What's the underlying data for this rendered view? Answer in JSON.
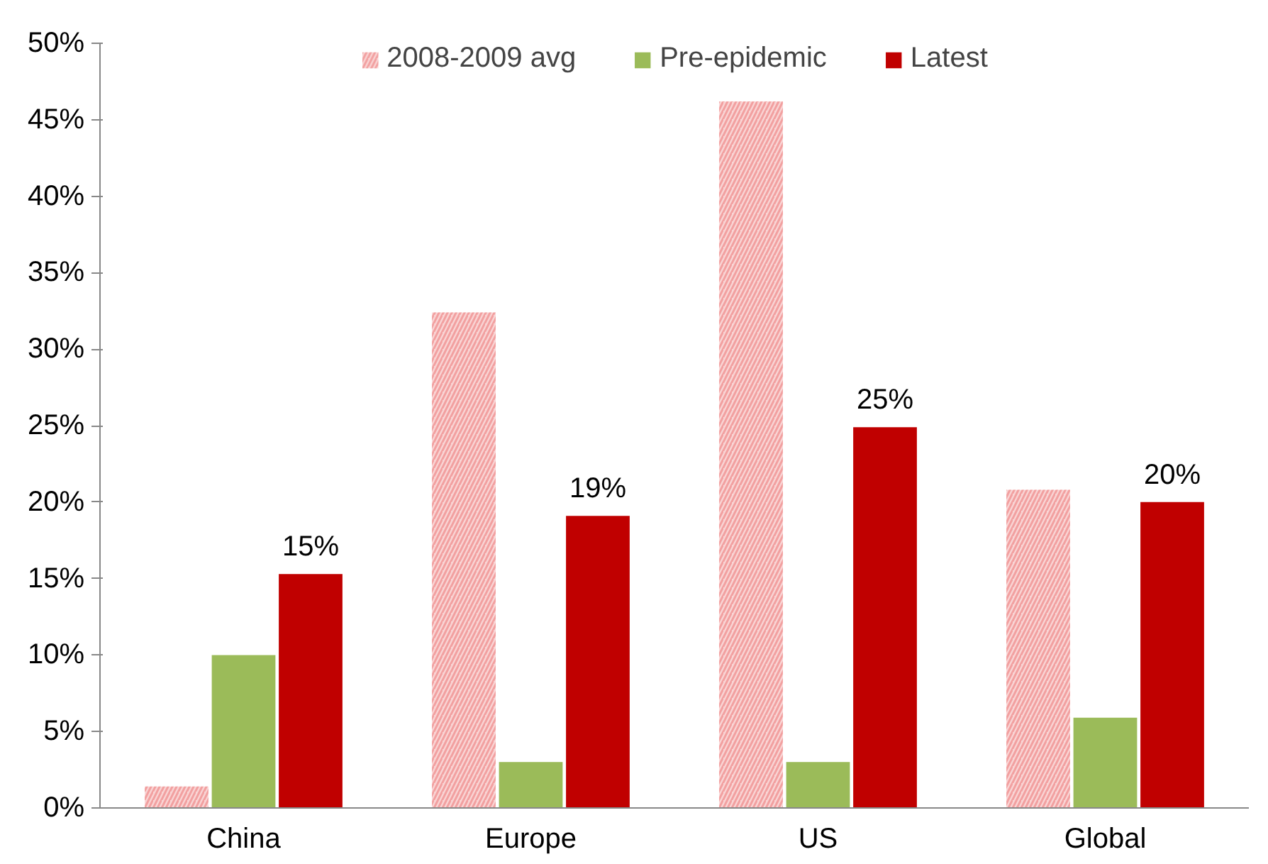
{
  "chart_data": {
    "type": "bar",
    "categories": [
      "China",
      "Europe",
      "US",
      "Global"
    ],
    "series": [
      {
        "name": "2008-2009 avg",
        "color": "#f2a0a0",
        "values": [
          1.4,
          32.4,
          46.2,
          20.8
        ]
      },
      {
        "name": "Pre-epidemic",
        "color": "#9bbb59",
        "values": [
          10.0,
          3.0,
          3.0,
          5.9
        ]
      },
      {
        "name": "Latest",
        "color": "#c00000",
        "values": [
          15.3,
          19.1,
          24.9,
          20.0
        ],
        "value_labels": [
          "15%",
          "19%",
          "25%",
          "20%"
        ]
      }
    ],
    "ylim": [
      0,
      50
    ],
    "yticks": [
      {
        "value": 0,
        "label": "0%"
      },
      {
        "value": 5,
        "label": "5%"
      },
      {
        "value": 10,
        "label": "10%"
      },
      {
        "value": 15,
        "label": "15%"
      },
      {
        "value": 20,
        "label": "20%"
      },
      {
        "value": 25,
        "label": "25%"
      },
      {
        "value": 30,
        "label": "30%"
      },
      {
        "value": 35,
        "label": "35%"
      },
      {
        "value": 40,
        "label": "40%"
      },
      {
        "value": 45,
        "label": "45%"
      },
      {
        "value": 50,
        "label": "50%"
      }
    ],
    "grid": false,
    "legend": "top"
  }
}
